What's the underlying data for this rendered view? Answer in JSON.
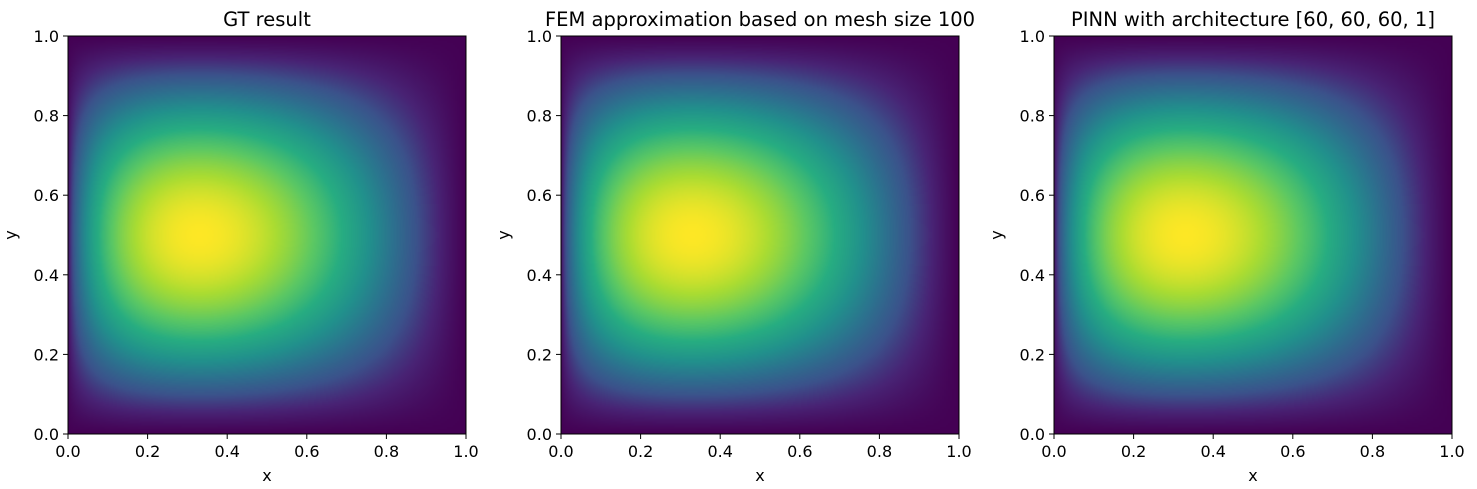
{
  "chart_data": [
    {
      "type": "heatmap",
      "title": "GT result",
      "xlabel": "x",
      "ylabel": "y",
      "xlim": [
        0.0,
        1.0
      ],
      "ylim": [
        0.0,
        1.0
      ],
      "xticks": [
        "0.0",
        "0.2",
        "0.4",
        "0.6",
        "0.8",
        "1.0"
      ],
      "yticks": [
        "0.0",
        "0.2",
        "0.4",
        "0.6",
        "0.8",
        "1.0"
      ],
      "colormap": "viridis",
      "field": {
        "peak_x": 0.33,
        "peak_y": 0.5,
        "min_location": "boundary"
      },
      "grid": false
    },
    {
      "type": "heatmap",
      "title": "FEM approximation based on mesh size 100",
      "xlabel": "x",
      "ylabel": "y",
      "xlim": [
        0.0,
        1.0
      ],
      "ylim": [
        0.0,
        1.0
      ],
      "xticks": [
        "0.0",
        "0.2",
        "0.4",
        "0.6",
        "0.8",
        "1.0"
      ],
      "yticks": [
        "0.0",
        "0.2",
        "0.4",
        "0.6",
        "0.8",
        "1.0"
      ],
      "colormap": "viridis",
      "field": {
        "peak_x": 0.33,
        "peak_y": 0.5,
        "min_location": "boundary"
      },
      "grid": false
    },
    {
      "type": "heatmap",
      "title": "PINN with architecture [60, 60, 60, 1]",
      "xlabel": "x",
      "ylabel": "y",
      "xlim": [
        0.0,
        1.0
      ],
      "ylim": [
        0.0,
        1.0
      ],
      "xticks": [
        "0.0",
        "0.2",
        "0.4",
        "0.6",
        "0.8",
        "1.0"
      ],
      "yticks": [
        "0.0",
        "0.2",
        "0.4",
        "0.6",
        "0.8",
        "1.0"
      ],
      "colormap": "viridis",
      "field": {
        "peak_x": 0.33,
        "peak_y": 0.5,
        "min_location": "boundary"
      },
      "grid": false
    }
  ]
}
